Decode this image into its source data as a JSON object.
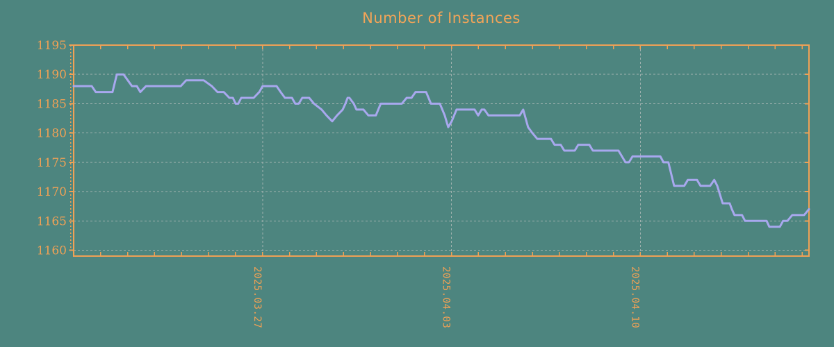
{
  "page": {
    "background": "#4d857f"
  },
  "chart_data": {
    "type": "line",
    "title": "Number of Instances",
    "legend": false,
    "grid": "dotted",
    "colors": {
      "background": "#4d857f",
      "accent_orange": "#f0a155",
      "line": "#a8a8ee",
      "gridline_gray": "#b0bab8"
    },
    "x_axis": {
      "unit": "days from left edge of plot",
      "range": [
        0,
        27.25
      ],
      "minor_tick_interval_days": 1,
      "label_rotation_deg": 90,
      "major_ticks": [
        {
          "day": 7,
          "label": "2025.03.27"
        },
        {
          "day": 14,
          "label": "2025.04.03"
        },
        {
          "day": 21,
          "label": "2025.04.10"
        }
      ]
    },
    "y_axis": {
      "range": [
        1159,
        1195
      ],
      "tick_labels": [
        1160,
        1165,
        1170,
        1175,
        1180,
        1185,
        1190,
        1195
      ],
      "gridline_values": [
        1160,
        1165,
        1170,
        1175,
        1180,
        1185,
        1190
      ]
    },
    "series": [
      {
        "name": "Number of Instances",
        "points": [
          [
            0.0,
            1188
          ],
          [
            0.67,
            1188
          ],
          [
            0.82,
            1187
          ],
          [
            1.44,
            1187
          ],
          [
            1.6,
            1190
          ],
          [
            1.85,
            1190
          ],
          [
            2.16,
            1188
          ],
          [
            2.34,
            1188
          ],
          [
            2.47,
            1187
          ],
          [
            2.68,
            1188
          ],
          [
            3.97,
            1188
          ],
          [
            4.17,
            1189
          ],
          [
            4.82,
            1189
          ],
          [
            5.12,
            1188
          ],
          [
            5.33,
            1187
          ],
          [
            5.56,
            1187
          ],
          [
            5.77,
            1186
          ],
          [
            5.9,
            1186
          ],
          [
            6.0,
            1185
          ],
          [
            6.1,
            1185
          ],
          [
            6.21,
            1186
          ],
          [
            6.67,
            1186
          ],
          [
            6.88,
            1187
          ],
          [
            7.0,
            1188
          ],
          [
            7.52,
            1188
          ],
          [
            7.67,
            1187
          ],
          [
            7.83,
            1186
          ],
          [
            8.09,
            1186
          ],
          [
            8.21,
            1185
          ],
          [
            8.34,
            1185
          ],
          [
            8.47,
            1186
          ],
          [
            8.73,
            1186
          ],
          [
            8.91,
            1185
          ],
          [
            9.19,
            1184
          ],
          [
            9.37,
            1183
          ],
          [
            9.58,
            1182
          ],
          [
            9.76,
            1183
          ],
          [
            9.97,
            1184
          ],
          [
            10.07,
            1185
          ],
          [
            10.15,
            1186
          ],
          [
            10.22,
            1186
          ],
          [
            10.38,
            1185
          ],
          [
            10.48,
            1184
          ],
          [
            10.74,
            1184
          ],
          [
            10.92,
            1183
          ],
          [
            11.2,
            1183
          ],
          [
            11.38,
            1185
          ],
          [
            12.16,
            1185
          ],
          [
            12.34,
            1186
          ],
          [
            12.52,
            1186
          ],
          [
            12.67,
            1187
          ],
          [
            13.06,
            1187
          ],
          [
            13.24,
            1185
          ],
          [
            13.57,
            1185
          ],
          [
            13.75,
            1183
          ],
          [
            13.88,
            1181
          ],
          [
            14.01,
            1182
          ],
          [
            14.19,
            1184
          ],
          [
            14.86,
            1184
          ],
          [
            14.99,
            1183
          ],
          [
            15.12,
            1184
          ],
          [
            15.22,
            1184
          ],
          [
            15.37,
            1183
          ],
          [
            16.53,
            1183
          ],
          [
            16.66,
            1184
          ],
          [
            16.84,
            1181
          ],
          [
            17.0,
            1180
          ],
          [
            17.18,
            1179
          ],
          [
            17.69,
            1179
          ],
          [
            17.82,
            1178
          ],
          [
            18.05,
            1178
          ],
          [
            18.18,
            1177
          ],
          [
            18.57,
            1177
          ],
          [
            18.7,
            1178
          ],
          [
            19.11,
            1178
          ],
          [
            19.24,
            1177
          ],
          [
            20.19,
            1177
          ],
          [
            20.32,
            1176
          ],
          [
            20.45,
            1175
          ],
          [
            20.58,
            1175
          ],
          [
            20.71,
            1176
          ],
          [
            21.74,
            1176
          ],
          [
            21.86,
            1175
          ],
          [
            22.04,
            1175
          ],
          [
            22.25,
            1171
          ],
          [
            22.63,
            1171
          ],
          [
            22.76,
            1172
          ],
          [
            23.1,
            1172
          ],
          [
            23.23,
            1171
          ],
          [
            23.59,
            1171
          ],
          [
            23.74,
            1172
          ],
          [
            23.85,
            1171
          ],
          [
            24.05,
            1168
          ],
          [
            24.31,
            1168
          ],
          [
            24.39,
            1167
          ],
          [
            24.49,
            1166
          ],
          [
            24.77,
            1166
          ],
          [
            24.88,
            1165
          ],
          [
            24.95,
            1165
          ],
          [
            25.68,
            1165
          ],
          [
            25.78,
            1164
          ],
          [
            26.17,
            1164
          ],
          [
            26.29,
            1165
          ],
          [
            26.45,
            1165
          ],
          [
            26.63,
            1166
          ],
          [
            27.07,
            1166
          ],
          [
            27.25,
            1167
          ]
        ]
      }
    ]
  }
}
